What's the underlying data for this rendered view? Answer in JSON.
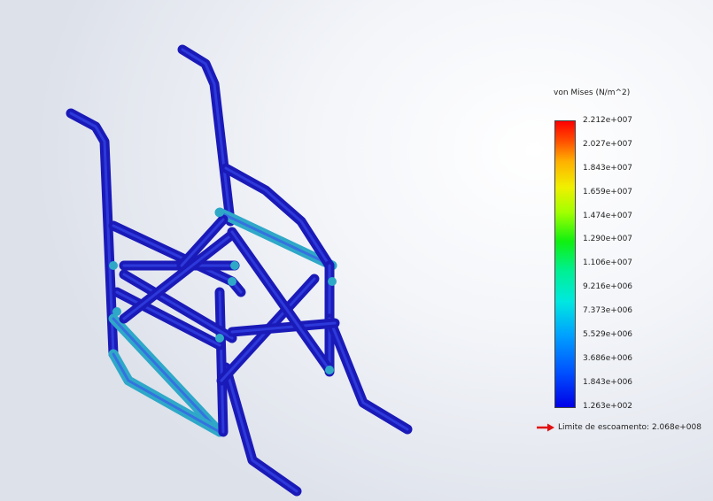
{
  "legend": {
    "title": "von Mises (N/m^2)",
    "ticks": [
      "2.212e+007",
      "2.027e+007",
      "1.843e+007",
      "1.659e+007",
      "1.474e+007",
      "1.290e+007",
      "1.106e+007",
      "9.216e+006",
      "7.373e+006",
      "5.529e+006",
      "3.686e+006",
      "1.843e+006",
      "1.263e+002"
    ],
    "yield_label": "Limite de escoamento: 2.068e+008"
  },
  "colors": {
    "tube_main": "#1a1ab8",
    "tube_highlight": "#3a4ef0",
    "tube_stress": "#2fa8c8",
    "yield_arrow": "#e01010"
  }
}
